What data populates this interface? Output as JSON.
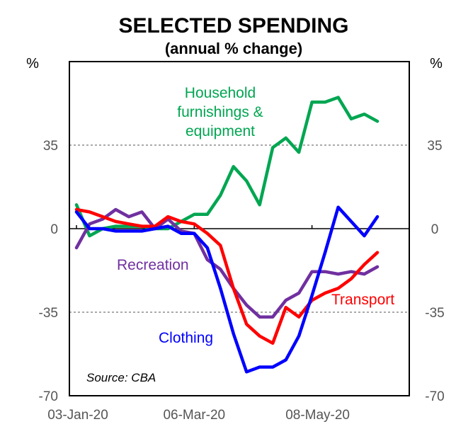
{
  "chart_data": {
    "type": "line",
    "title": "SELECTED SPENDING",
    "subtitle": "(annual % change)",
    "ylabel_left": "%",
    "ylabel_right": "%",
    "ylim": [
      -70,
      70
    ],
    "yticks": [
      35,
      0,
      -35,
      -70
    ],
    "ytick_labels": [
      "35",
      "0",
      "-35",
      "-70"
    ],
    "xtick_labels": [
      "03-Jan-20",
      "06-Mar-20",
      "08-May-20"
    ],
    "xtick_index": [
      0,
      9,
      18
    ],
    "grid": "dashed at ±35",
    "source": "Source: CBA",
    "series": [
      {
        "name": "Household furnishings & equipment",
        "label_lines": [
          "Household",
          "furnishings &",
          "equipment"
        ],
        "color": "#00A651",
        "values": [
          10,
          -3,
          0,
          1,
          1,
          1,
          0,
          0,
          3,
          6,
          6,
          14,
          26,
          20,
          10,
          34,
          38,
          32,
          53,
          53,
          55,
          46,
          48,
          45
        ]
      },
      {
        "name": "Recreation",
        "label_lines": [
          "Recreation"
        ],
        "color": "#7030A0",
        "values": [
          -8,
          2,
          4,
          8,
          5,
          7,
          0,
          4,
          -1,
          -2,
          -13,
          -17,
          -25,
          -32,
          -37,
          -37,
          -30,
          -27,
          -18,
          -18,
          -19,
          -18,
          -19,
          -16
        ]
      },
      {
        "name": "Transport",
        "label_lines": [
          "Transport"
        ],
        "color": "#FF0000",
        "values": [
          8,
          7,
          5,
          3,
          2,
          1,
          1,
          5,
          3,
          2,
          -2,
          -7,
          -25,
          -40,
          -45,
          -48,
          -33,
          -37,
          -30,
          -27,
          -25,
          -21,
          -15,
          -10
        ]
      },
      {
        "name": "Clothing",
        "label_lines": [
          "Clothing"
        ],
        "color": "#0000FF",
        "values": [
          7,
          0,
          0,
          -1,
          -1,
          -1,
          0,
          1,
          -2,
          -2,
          -8,
          -25,
          -44,
          -60,
          -58,
          -58,
          -55,
          -45,
          -28,
          -10,
          9,
          3,
          -3,
          5
        ]
      }
    ]
  }
}
